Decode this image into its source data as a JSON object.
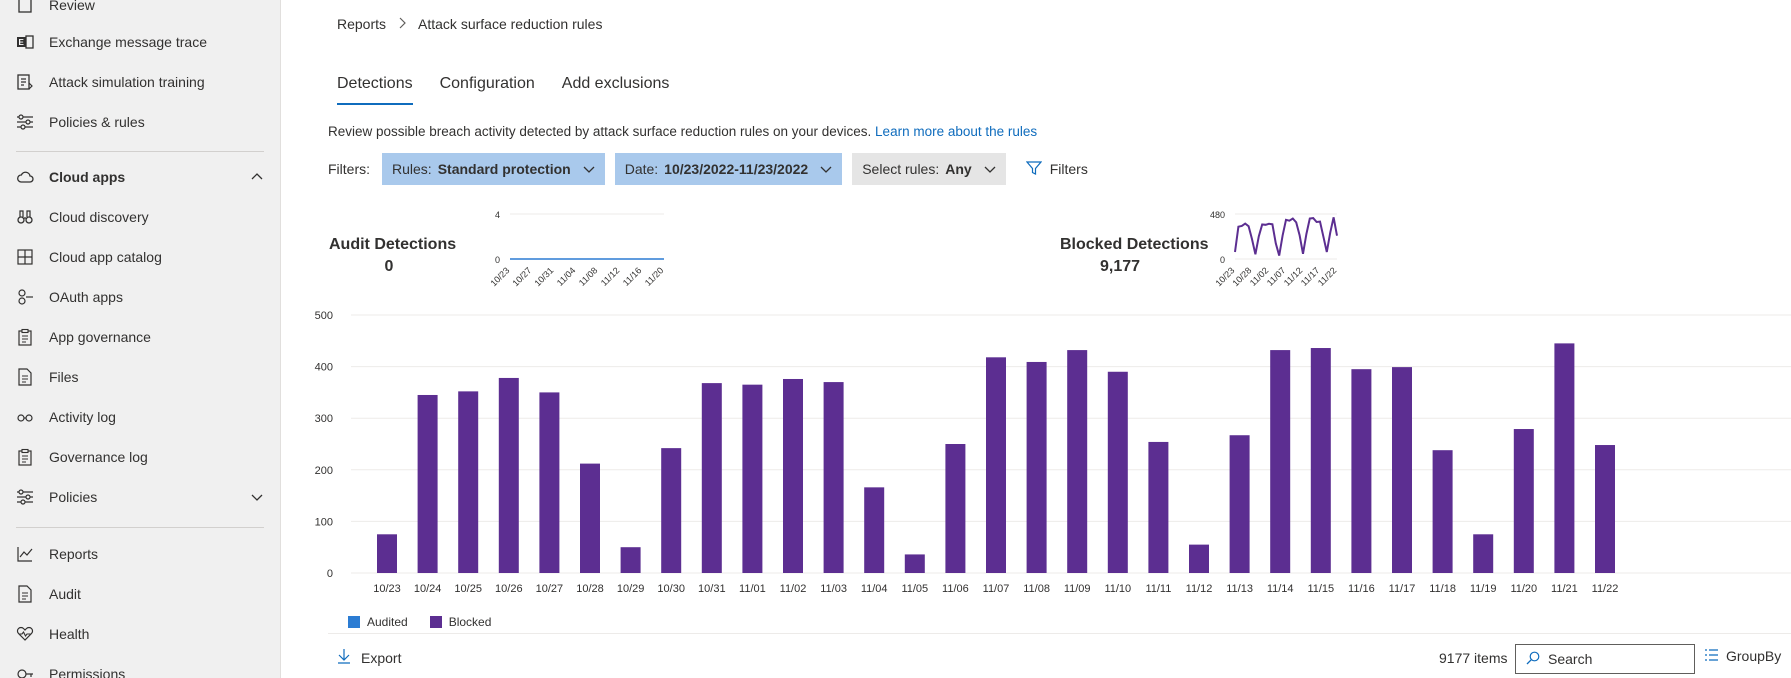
{
  "sidebar": {
    "items": [
      {
        "label": "Review",
        "icon": "review-icon"
      },
      {
        "label": "Exchange message trace",
        "icon": "exchange-icon"
      },
      {
        "label": "Attack simulation training",
        "icon": "simulation-icon"
      },
      {
        "label": "Policies & rules",
        "icon": "sliders-icon"
      },
      {
        "label": "Cloud apps",
        "icon": "cloud-icon",
        "expanded": true
      },
      {
        "label": "Cloud discovery",
        "icon": "binoculars-icon"
      },
      {
        "label": "Cloud app catalog",
        "icon": "catalog-icon"
      },
      {
        "label": "OAuth apps",
        "icon": "oauth-icon"
      },
      {
        "label": "App governance",
        "icon": "clipboard-icon"
      },
      {
        "label": "Files",
        "icon": "file-icon"
      },
      {
        "label": "Activity log",
        "icon": "glasses-icon"
      },
      {
        "label": "Governance log",
        "icon": "clipboard-icon"
      },
      {
        "label": "Policies",
        "icon": "sliders-icon",
        "expanded": false
      },
      {
        "label": "Reports",
        "icon": "chart-line-icon"
      },
      {
        "label": "Audit",
        "icon": "audit-icon"
      },
      {
        "label": "Health",
        "icon": "heart-icon"
      },
      {
        "label": "Permissions",
        "icon": "key-icon"
      }
    ]
  },
  "breadcrumb": {
    "root": "Reports",
    "separator": ">",
    "current": "Attack surface reduction rules"
  },
  "tabs": [
    {
      "label": "Detections",
      "active": true
    },
    {
      "label": "Configuration",
      "active": false
    },
    {
      "label": "Add exclusions",
      "active": false
    }
  ],
  "description": {
    "text": "Review possible breach activity detected by attack surface reduction rules on your devices.",
    "link": "Learn more about the rules"
  },
  "filters": {
    "label": "Filters:",
    "rules_key": "Rules:",
    "rules_value": "Standard protection",
    "date_key": "Date:",
    "date_value": "10/23/2022-11/23/2022",
    "select_key": "Select rules:",
    "select_value": "Any",
    "filters_button": "Filters"
  },
  "audit": {
    "title": "Audit Detections",
    "value": "0",
    "spark": {
      "ymax_label": "4",
      "ymin_label": "0",
      "ticks": [
        "10/23",
        "10/27",
        "10/31",
        "11/04",
        "11/08",
        "11/12",
        "11/16",
        "11/20"
      ],
      "values": [
        0,
        0,
        0,
        0,
        0,
        0,
        0,
        0,
        0,
        0,
        0,
        0,
        0,
        0,
        0,
        0,
        0,
        0,
        0,
        0,
        0,
        0,
        0,
        0,
        0,
        0,
        0,
        0,
        0,
        0,
        0
      ]
    }
  },
  "blocked": {
    "title": "Blocked Detections",
    "value": "9,177",
    "spark": {
      "ymax_label": "480",
      "ymin_label": "0",
      "ticks": [
        "10/23",
        "10/28",
        "11/02",
        "11/07",
        "11/12",
        "11/17",
        "11/22"
      ]
    }
  },
  "chart_data": {
    "type": "bar",
    "ylim": [
      0,
      500
    ],
    "yticks": [
      0,
      100,
      200,
      300,
      400,
      500
    ],
    "categories": [
      "10/23",
      "10/24",
      "10/25",
      "10/26",
      "10/27",
      "10/28",
      "10/29",
      "10/30",
      "10/31",
      "11/01",
      "11/02",
      "11/03",
      "11/04",
      "11/05",
      "11/06",
      "11/07",
      "11/08",
      "11/09",
      "11/10",
      "11/11",
      "11/12",
      "11/13",
      "11/14",
      "11/15",
      "11/16",
      "11/17",
      "11/18",
      "11/19",
      "11/20",
      "11/21",
      "11/22"
    ],
    "series": [
      {
        "name": "Audited",
        "color": "#2b7cd3",
        "values": [
          0,
          0,
          0,
          0,
          0,
          0,
          0,
          0,
          0,
          0,
          0,
          0,
          0,
          0,
          0,
          0,
          0,
          0,
          0,
          0,
          0,
          0,
          0,
          0,
          0,
          0,
          0,
          0,
          0,
          0,
          0
        ]
      },
      {
        "name": "Blocked",
        "color": "#5c2e91",
        "values": [
          75,
          345,
          352,
          378,
          350,
          212,
          50,
          242,
          368,
          365,
          376,
          370,
          166,
          36,
          250,
          418,
          409,
          432,
          390,
          254,
          55,
          267,
          432,
          436,
          395,
          399,
          238,
          75,
          279,
          445,
          248
        ]
      }
    ]
  },
  "footer": {
    "export": "Export",
    "count": "9177 items",
    "search_placeholder": "Search",
    "groupby": "GroupBy"
  }
}
